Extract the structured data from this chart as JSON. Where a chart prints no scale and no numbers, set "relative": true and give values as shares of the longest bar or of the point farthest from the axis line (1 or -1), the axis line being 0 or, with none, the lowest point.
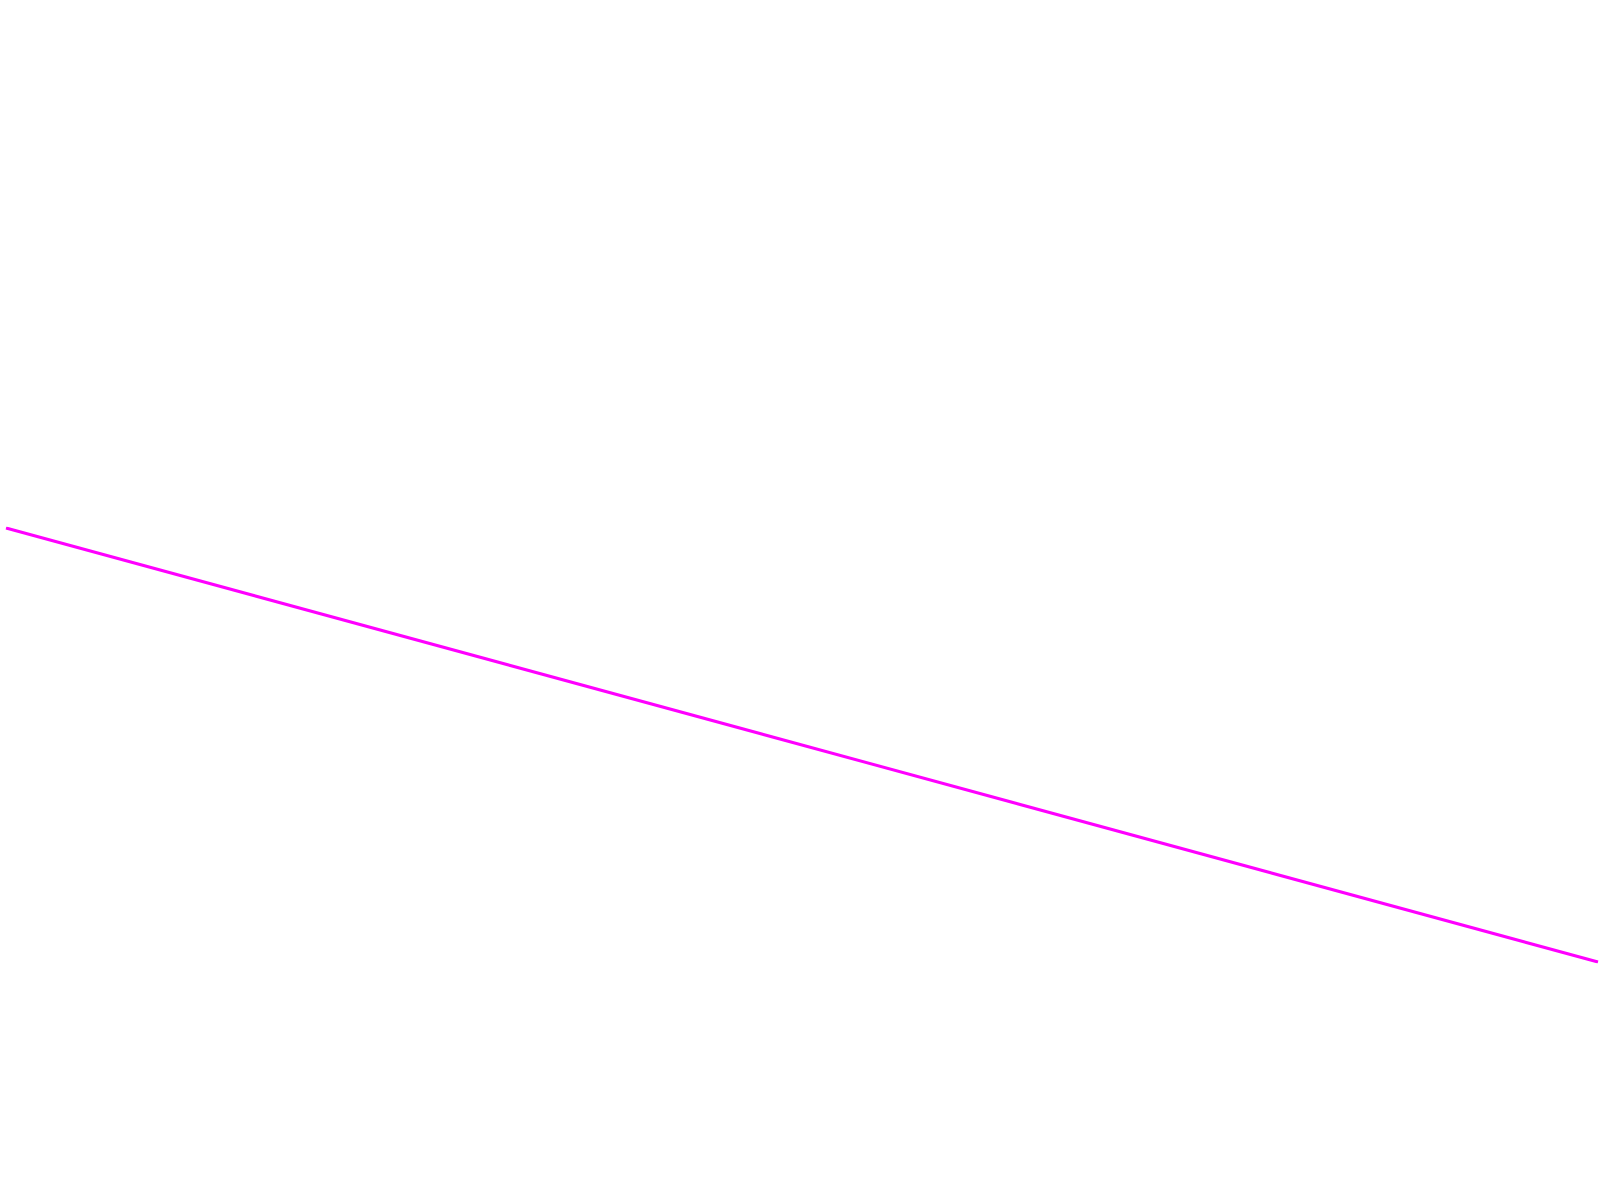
{
  "chart_data": {
    "type": "line",
    "relative": true,
    "categories": [
      null,
      null
    ],
    "series": [
      {
        "color": "#ff00ff",
        "values": [
          1,
          0
        ]
      }
    ],
    "grid": false,
    "marker": "none",
    "line_style": "solid"
  }
}
